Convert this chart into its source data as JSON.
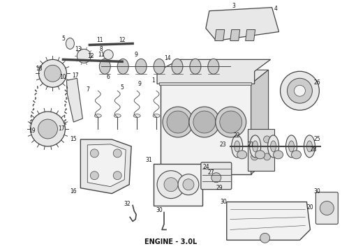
{
  "title": "ENGINE - 3.0L",
  "title_fontsize": 7,
  "title_color": "#111111",
  "background_color": "#ffffff",
  "fig_width": 4.9,
  "fig_height": 3.6,
  "dpi": 100,
  "line_color": "#444444",
  "fill_color": "#e8e8e8",
  "fill_dark": "#cccccc",
  "fill_light": "#f2f2f2",
  "label_fontsize": 5.5
}
